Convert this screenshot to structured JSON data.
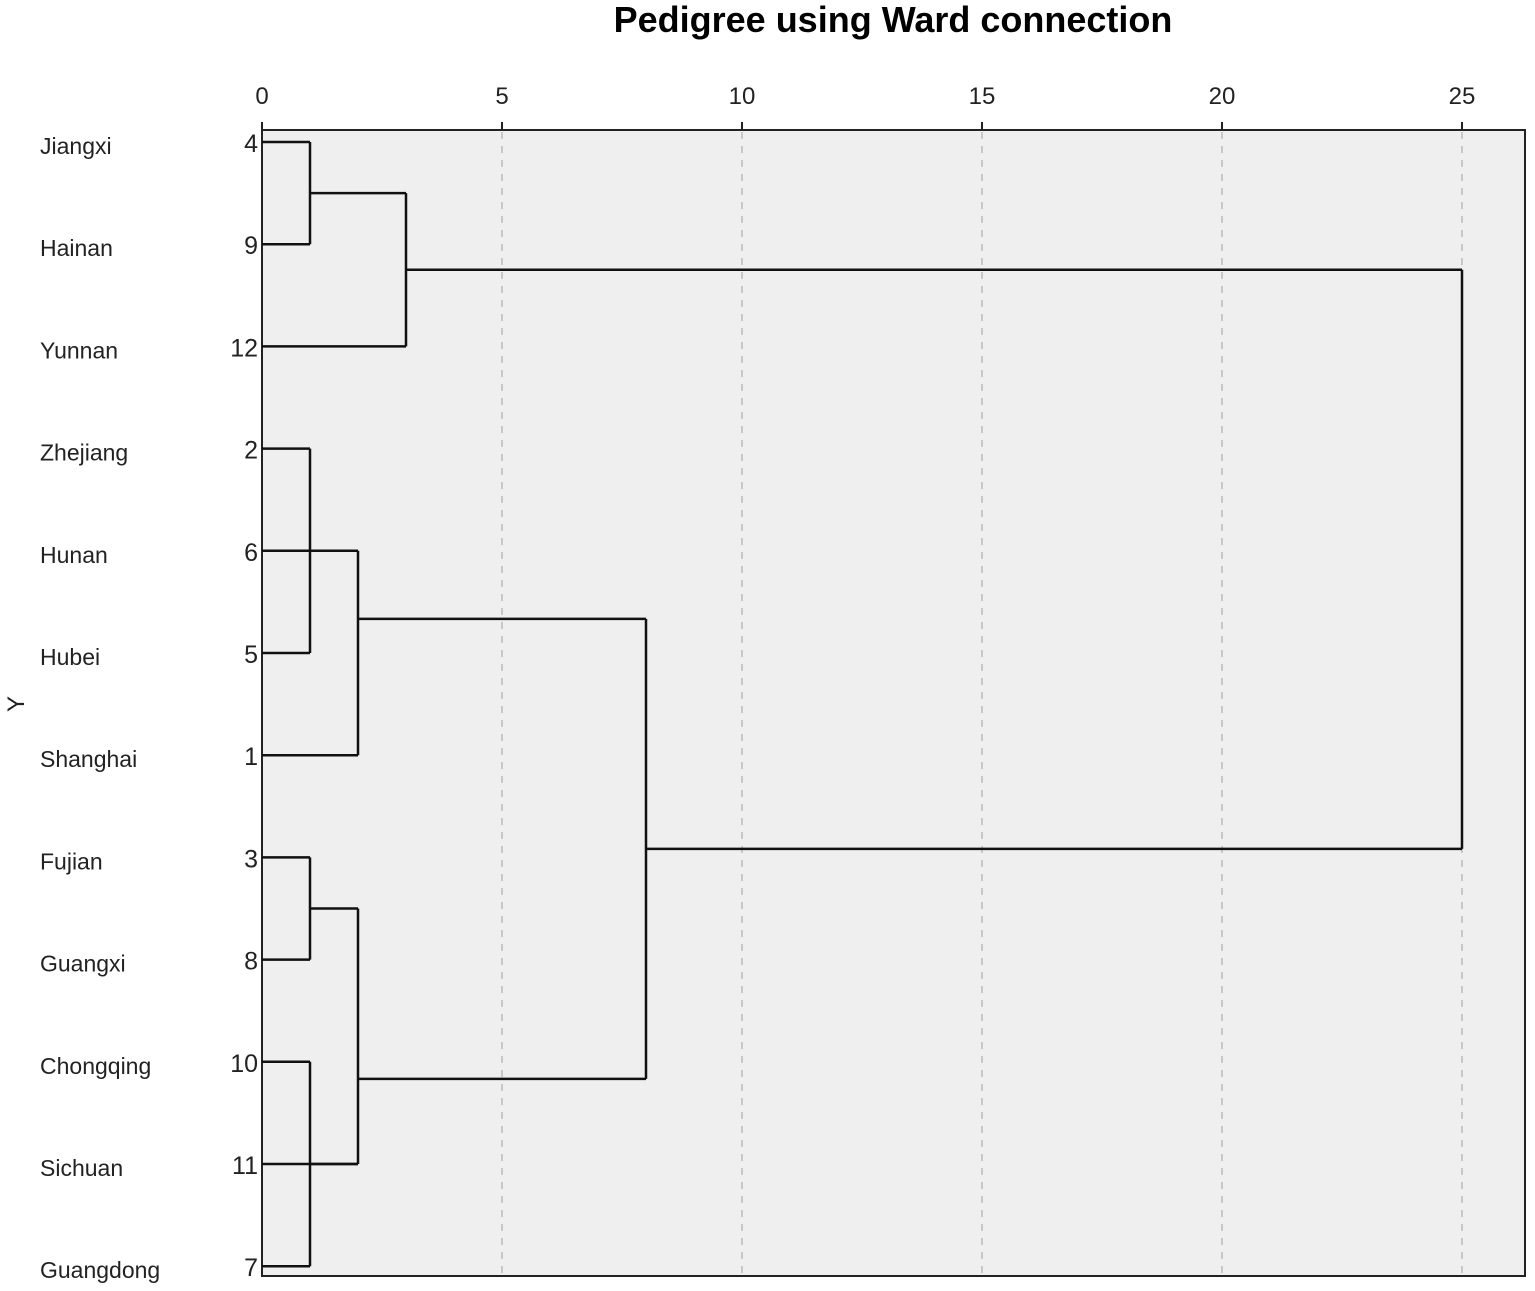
{
  "chart_data": {
    "type": "dendrogram",
    "title": "Pedigree using Ward connection",
    "xlabel": "",
    "ylabel": "Y",
    "xlim": [
      0,
      26
    ],
    "xticks": [
      0,
      5,
      10,
      15,
      20,
      25
    ],
    "grid": "vertical dashed",
    "leaves": [
      {
        "name": "Jiangxi",
        "id": "4"
      },
      {
        "name": "Hainan",
        "id": "9"
      },
      {
        "name": "Yunnan",
        "id": "12"
      },
      {
        "name": "Zhejiang",
        "id": "2"
      },
      {
        "name": "Hunan",
        "id": "6"
      },
      {
        "name": "Hubei",
        "id": "5"
      },
      {
        "name": "Shanghai",
        "id": "1"
      },
      {
        "name": "Fujian",
        "id": "3"
      },
      {
        "name": "Guangxi",
        "id": "8"
      },
      {
        "name": "Chongqing",
        "id": "10"
      },
      {
        "name": "Sichuan",
        "id": "11"
      },
      {
        "name": "Guangdong",
        "id": "7"
      }
    ],
    "merges": [
      {
        "members": [
          "Jiangxi",
          "Hainan"
        ],
        "distance": 1
      },
      {
        "members": [
          "Jiangxi",
          "Hainan",
          "Yunnan"
        ],
        "distance": 3
      },
      {
        "members": [
          "Zhejiang",
          "Hubei"
        ],
        "distance": 1
      },
      {
        "members": [
          "Zhejiang",
          "Hubei",
          "Hunan",
          "Shanghai"
        ],
        "distance": 2
      },
      {
        "members": [
          "Fujian",
          "Guangxi"
        ],
        "distance": 1
      },
      {
        "members": [
          "Chongqing",
          "Guangdong"
        ],
        "distance": 1
      },
      {
        "members": [
          "Fujian",
          "Guangxi",
          "Chongqing",
          "Guangdong",
          "Sichuan"
        ],
        "distance": 2
      },
      {
        "members": [
          "Zhejiang",
          "Hubei",
          "Hunan",
          "Shanghai",
          "Fujian",
          "Guangxi",
          "Chongqing",
          "Guangdong",
          "Sichuan"
        ],
        "distance": 8
      },
      {
        "members": [
          "Jiangxi",
          "Hainan",
          "Yunnan",
          "Zhejiang",
          "Hubei",
          "Hunan",
          "Shanghai",
          "Fujian",
          "Guangxi",
          "Chongqing",
          "Guangdong",
          "Sichuan"
        ],
        "distance": 25
      }
    ]
  }
}
